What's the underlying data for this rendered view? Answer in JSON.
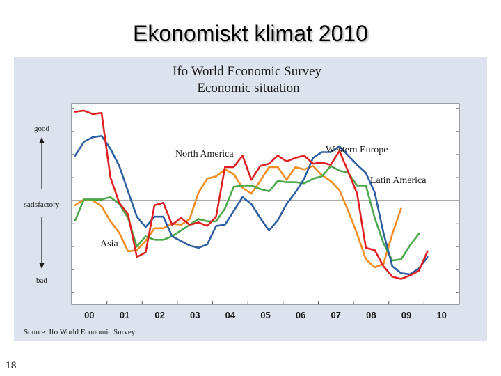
{
  "slide": {
    "title": "Ekonomiskt klimat 2010",
    "page_number": "18"
  },
  "chart_data": {
    "type": "line",
    "title": "Ifo World Economic Survey",
    "subtitle": "Economic situation",
    "source": "Source: Ifo World Economic Survey.",
    "y_axis_labels": {
      "top": "good",
      "middle": "satisfactory",
      "bottom": "bad"
    },
    "x_tick_labels": [
      "00",
      "01",
      "02",
      "03",
      "04",
      "05",
      "06",
      "07",
      "08",
      "09",
      "10"
    ],
    "xlim": [
      1999.5,
      2010.5
    ],
    "ylim": [
      -4.5,
      4.2
    ],
    "reference_line": 0,
    "x_start": 1999.6,
    "x_step": 0.25,
    "series": [
      {
        "name": "Western Europe",
        "color": "#e02020",
        "values": [
          3.85,
          3.9,
          3.75,
          3.8,
          1.0,
          -0.1,
          -0.6,
          -2.45,
          -2.25,
          -0.2,
          -0.1,
          -1.05,
          -0.75,
          -1.05,
          -0.95,
          -1.1,
          -0.7,
          1.45,
          1.45,
          1.95,
          0.9,
          1.5,
          1.6,
          1.95,
          1.7,
          1.85,
          1.95,
          1.6,
          1.65,
          1.55,
          2.15,
          1.25,
          0.3,
          -2.05,
          -2.15,
          -2.85,
          -3.3,
          -3.4,
          -3.25,
          -3.05,
          -2.2
        ]
      },
      {
        "name": "North America",
        "color": "#2c5ea0",
        "values": [
          1.95,
          2.55,
          2.75,
          2.8,
          2.25,
          1.5,
          0.4,
          -0.7,
          -1.15,
          -0.7,
          -0.7,
          -1.55,
          -1.75,
          -1.95,
          -2.05,
          -1.9,
          -1.1,
          -1.05,
          -0.45,
          0.15,
          -0.15,
          -0.75,
          -1.3,
          -0.85,
          -0.15,
          0.35,
          0.95,
          1.85,
          2.1,
          2.1,
          2.35,
          1.95,
          1.55,
          1.2,
          0.35,
          -1.4,
          -2.85,
          -3.15,
          -3.2,
          -2.95,
          -2.45
        ]
      },
      {
        "name": "Latin America",
        "color": "#4aa84a",
        "values": [
          -0.85,
          0.05,
          0.05,
          0.05,
          0.15,
          -0.15,
          -0.75,
          -2.0,
          -1.55,
          -1.7,
          -1.7,
          -1.55,
          -1.3,
          -1.05,
          -0.8,
          -0.9,
          -0.9,
          -0.35,
          0.6,
          0.65,
          0.65,
          0.5,
          0.4,
          0.85,
          0.8,
          0.8,
          0.75,
          0.95,
          1.05,
          1.5,
          1.3,
          1.2,
          0.65,
          0.65,
          -0.75,
          -1.85,
          -2.6,
          -2.55,
          -1.95,
          -1.45
        ]
      },
      {
        "name": "Asia",
        "color": "#f08c20",
        "values": [
          -0.2,
          0.05,
          0.0,
          -0.25,
          -0.9,
          -1.4,
          -2.2,
          -2.15,
          -1.75,
          -1.2,
          -1.2,
          -1.0,
          -1.05,
          -0.8,
          0.35,
          0.95,
          1.05,
          1.35,
          1.15,
          0.55,
          0.3,
          0.85,
          1.45,
          1.45,
          0.9,
          1.45,
          1.35,
          1.5,
          1.1,
          0.85,
          0.45,
          -0.45,
          -1.45,
          -2.55,
          -2.9,
          -2.75,
          -1.45,
          -0.35
        ]
      }
    ]
  }
}
